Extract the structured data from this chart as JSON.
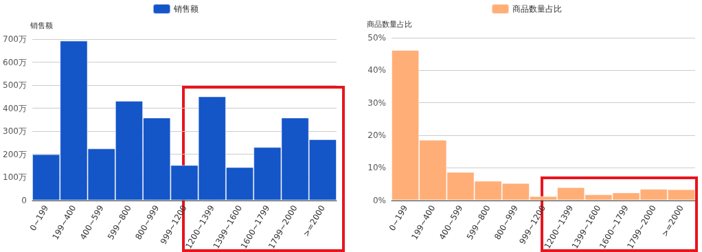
{
  "chart_data": [
    {
      "type": "bar",
      "ylabel": "销售额",
      "categories": [
        "0~199",
        "199~400",
        "400~599",
        "599~800",
        "800~999",
        "999~1200",
        "1200~1399",
        "1399~1600",
        "1600~1799",
        "1799~2000",
        ">=2000"
      ],
      "series": [
        {
          "name": "销售额",
          "color": "#1455c8",
          "values": [
            200,
            693,
            225,
            432,
            359,
            153,
            451,
            144,
            231,
            359,
            265
          ]
        }
      ],
      "ylim": [
        0,
        700
      ],
      "yticks": [
        0,
        {
          "value": 100,
          "label": "100万"
        },
        {
          "value": 200,
          "label": "200万"
        },
        {
          "value": 300,
          "label": "300万"
        },
        {
          "value": 400,
          "label": "400万"
        },
        {
          "value": 500,
          "label": "500万"
        },
        {
          "value": 600,
          "label": "600万"
        },
        {
          "value": 700,
          "label": "700万"
        }
      ],
      "grid": "y",
      "legend": "top"
    },
    {
      "type": "bar",
      "ylabel": "商品数量占比",
      "categories": [
        "0~199",
        "199~400",
        "400~599",
        "599~800",
        "800~999",
        "999~1200",
        "1200~1399",
        "1399~1600",
        "1600~1799",
        "1799~2000",
        ">=2000"
      ],
      "series": [
        {
          "name": "商品数量占比",
          "color": "#ffae78",
          "values": [
            46.2,
            18.6,
            8.7,
            6.0,
            5.3,
            1.3,
            4.0,
            1.8,
            2.4,
            3.5,
            3.4
          ]
        }
      ],
      "ylim": [
        0,
        50
      ],
      "yticks": [
        {
          "value": 0,
          "label": "0%"
        },
        {
          "value": 10,
          "label": "10%"
        },
        {
          "value": 20,
          "label": "20%"
        },
        {
          "value": 30,
          "label": "30%"
        },
        {
          "value": 40,
          "label": "40%"
        },
        {
          "value": 50,
          "label": "50%"
        }
      ],
      "grid": "y",
      "legend": "top"
    }
  ]
}
